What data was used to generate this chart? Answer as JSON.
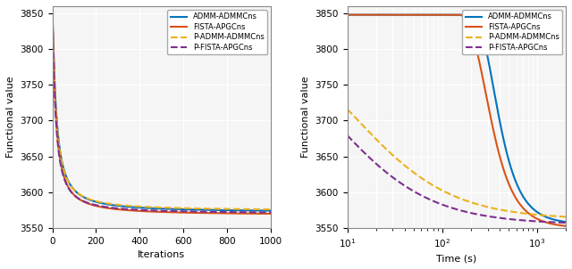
{
  "xlabel_left": "Iterations",
  "xlabel_right": "Time (s)",
  "ylabel": "Functional value",
  "ylim": [
    3550,
    3860
  ],
  "xlim_left": [
    0,
    1000
  ],
  "xlim_right": [
    10,
    2000
  ],
  "legend_labels": [
    "ADMM-ADMMCns",
    "FISTA-APGCns",
    "P-ADMM-ADMMCns",
    "P-FISTA-APGCns"
  ],
  "colors": [
    "#0072BD",
    "#D95319",
    "#EDB120",
    "#7E2F8E"
  ],
  "linestyles": [
    "-",
    "-",
    "--",
    "--"
  ],
  "linewidths": [
    1.5,
    1.5,
    1.5,
    1.5
  ],
  "yticks": [
    3550,
    3600,
    3650,
    3700,
    3750,
    3800,
    3850
  ],
  "xticks_left": [
    0,
    200,
    400,
    600,
    800,
    1000
  ],
  "background_color": "#f5f5f5",
  "grid_color": "#ffffff"
}
